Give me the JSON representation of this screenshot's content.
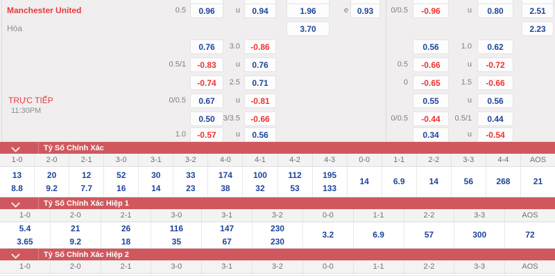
{
  "colors": {
    "accent_red": "#e8393d",
    "odds_blue": "#1d439b",
    "odds_red": "#f03030",
    "banner_red": "#cf585e"
  },
  "odds": {
    "home_team": "Manchester United",
    "draw_label": "Hòa",
    "live_label": "TRỰC TIẾP",
    "time": "11:30PM",
    "rows": [
      {
        "cells": [
          {
            "p": "l",
            "c": 0,
            "t": "0.5",
            "s": "label"
          },
          {
            "p": "l",
            "c": 1,
            "t": "0.96",
            "s": "blue"
          },
          {
            "p": "l",
            "c": 2,
            "t": "u",
            "s": "label"
          },
          {
            "p": "l",
            "c": 3,
            "t": "0.94",
            "s": "blue"
          },
          {
            "p": "l",
            "c": 4,
            "t": "1.96",
            "s": "blue"
          },
          {
            "p": "l",
            "c": 5,
            "t": "e",
            "s": "label"
          },
          {
            "p": "l",
            "c": 6,
            "t": "0.93",
            "s": "blue"
          },
          {
            "p": "r",
            "c": 0,
            "t": "0/0.5",
            "s": "label"
          },
          {
            "p": "r",
            "c": 1,
            "t": "-0.96",
            "s": "red"
          },
          {
            "p": "r",
            "c": 2,
            "t": "u",
            "s": "label"
          },
          {
            "p": "r",
            "c": 3,
            "t": "0.80",
            "s": "blue"
          },
          {
            "p": "r",
            "c": 4,
            "t": "2.51",
            "s": "blue"
          }
        ]
      },
      {
        "cells": [
          {
            "p": "l",
            "c": 4,
            "t": "3.70",
            "s": "blue"
          },
          {
            "p": "r",
            "c": 4,
            "t": "2.23",
            "s": "blue"
          }
        ]
      },
      {
        "cells": [
          {
            "p": "l",
            "c": 1,
            "t": "0.76",
            "s": "blue"
          },
          {
            "p": "l",
            "c": 2,
            "t": "3.0",
            "s": "label"
          },
          {
            "p": "l",
            "c": 3,
            "t": "-0.86",
            "s": "red"
          },
          {
            "p": "r",
            "c": 1,
            "t": "0.56",
            "s": "blue"
          },
          {
            "p": "r",
            "c": 2,
            "t": "1.0",
            "s": "label"
          },
          {
            "p": "r",
            "c": 3,
            "t": "0.62",
            "s": "blue"
          }
        ]
      },
      {
        "cells": [
          {
            "p": "l",
            "c": 0,
            "t": "0.5/1",
            "s": "label"
          },
          {
            "p": "l",
            "c": 1,
            "t": "-0.83",
            "s": "red"
          },
          {
            "p": "l",
            "c": 2,
            "t": "u",
            "s": "label"
          },
          {
            "p": "l",
            "c": 3,
            "t": "0.76",
            "s": "blue"
          },
          {
            "p": "r",
            "c": 0,
            "t": "0.5",
            "s": "label"
          },
          {
            "p": "r",
            "c": 1,
            "t": "-0.66",
            "s": "red"
          },
          {
            "p": "r",
            "c": 2,
            "t": "u",
            "s": "label"
          },
          {
            "p": "r",
            "c": 3,
            "t": "-0.72",
            "s": "red"
          }
        ]
      },
      {
        "cells": [
          {
            "p": "l",
            "c": 1,
            "t": "-0.74",
            "s": "red"
          },
          {
            "p": "l",
            "c": 2,
            "t": "2.5",
            "s": "label"
          },
          {
            "p": "l",
            "c": 3,
            "t": "0.71",
            "s": "blue"
          },
          {
            "p": "r",
            "c": 0,
            "t": "0",
            "s": "label"
          },
          {
            "p": "r",
            "c": 1,
            "t": "-0.65",
            "s": "red"
          },
          {
            "p": "r",
            "c": 2,
            "t": "1.5",
            "s": "label"
          },
          {
            "p": "r",
            "c": 3,
            "t": "-0.66",
            "s": "red"
          }
        ]
      },
      {
        "cells": [
          {
            "p": "l",
            "c": 0,
            "t": "0/0.5",
            "s": "label"
          },
          {
            "p": "l",
            "c": 1,
            "t": "0.67",
            "s": "blue"
          },
          {
            "p": "l",
            "c": 2,
            "t": "u",
            "s": "label"
          },
          {
            "p": "l",
            "c": 3,
            "t": "-0.81",
            "s": "red"
          },
          {
            "p": "r",
            "c": 1,
            "t": "0.55",
            "s": "blue"
          },
          {
            "p": "r",
            "c": 2,
            "t": "u",
            "s": "label"
          },
          {
            "p": "r",
            "c": 3,
            "t": "0.56",
            "s": "blue"
          }
        ]
      },
      {
        "cells": [
          {
            "p": "l",
            "c": 1,
            "t": "0.50",
            "s": "blue"
          },
          {
            "p": "l",
            "c": 2,
            "t": "3/3.5",
            "s": "label"
          },
          {
            "p": "l",
            "c": 3,
            "t": "-0.66",
            "s": "red"
          },
          {
            "p": "r",
            "c": 0,
            "t": "0/0.5",
            "s": "label"
          },
          {
            "p": "r",
            "c": 1,
            "t": "-0.44",
            "s": "red"
          },
          {
            "p": "r",
            "c": 2,
            "t": "0.5/1",
            "s": "label"
          },
          {
            "p": "r",
            "c": 3,
            "t": "0.44",
            "s": "blue"
          }
        ]
      },
      {
        "cells": [
          {
            "p": "l",
            "c": 0,
            "t": "1.0",
            "s": "label"
          },
          {
            "p": "l",
            "c": 1,
            "t": "-0.57",
            "s": "red"
          },
          {
            "p": "l",
            "c": 2,
            "t": "u",
            "s": "label"
          },
          {
            "p": "l",
            "c": 3,
            "t": "0.56",
            "s": "blue"
          },
          {
            "p": "r",
            "c": 1,
            "t": "0.34",
            "s": "blue"
          },
          {
            "p": "r",
            "c": 2,
            "t": "u",
            "s": "label"
          },
          {
            "p": "r",
            "c": 3,
            "t": "-0.54",
            "s": "red"
          }
        ]
      }
    ]
  },
  "score_sections": [
    {
      "title": "Tỷ Số Chính Xác",
      "cols": [
        {
          "h": "1-0",
          "v": [
            "13",
            "8.8"
          ]
        },
        {
          "h": "2-0",
          "v": [
            "20",
            "9.2"
          ]
        },
        {
          "h": "2-1",
          "v": [
            "12",
            "7.7"
          ]
        },
        {
          "h": "3-0",
          "v": [
            "52",
            "16"
          ]
        },
        {
          "h": "3-1",
          "v": [
            "30",
            "14"
          ]
        },
        {
          "h": "3-2",
          "v": [
            "33",
            "23"
          ]
        },
        {
          "h": "4-0",
          "v": [
            "174",
            "38"
          ]
        },
        {
          "h": "4-1",
          "v": [
            "100",
            "32"
          ]
        },
        {
          "h": "4-2",
          "v": [
            "112",
            "53"
          ]
        },
        {
          "h": "4-3",
          "v": [
            "195",
            "133"
          ]
        },
        {
          "h": "0-0",
          "v": [
            "14"
          ]
        },
        {
          "h": "1-1",
          "v": [
            "6.9"
          ]
        },
        {
          "h": "2-2",
          "v": [
            "14"
          ]
        },
        {
          "h": "3-3",
          "v": [
            "56"
          ]
        },
        {
          "h": "4-4",
          "v": [
            "268"
          ]
        },
        {
          "h": "AOS",
          "v": [
            "21"
          ]
        }
      ]
    },
    {
      "title": "Tỷ Số Chính Xác Hiệp 1",
      "cols": [
        {
          "h": "1-0",
          "v": [
            "5.4",
            "3.65"
          ]
        },
        {
          "h": "2-0",
          "v": [
            "21",
            "9.2"
          ]
        },
        {
          "h": "2-1",
          "v": [
            "26",
            "18"
          ]
        },
        {
          "h": "3-0",
          "v": [
            "116",
            "35"
          ]
        },
        {
          "h": "3-1",
          "v": [
            "147",
            "67"
          ]
        },
        {
          "h": "3-2",
          "v": [
            "230",
            "230"
          ]
        },
        {
          "h": "0-0",
          "v": [
            "3.2"
          ]
        },
        {
          "h": "1-1",
          "v": [
            "6.9"
          ]
        },
        {
          "h": "2-2",
          "v": [
            "57"
          ]
        },
        {
          "h": "3-3",
          "v": [
            "300"
          ]
        },
        {
          "h": "AOS",
          "v": [
            "72"
          ]
        }
      ]
    },
    {
      "title": "Tỷ Số Chính Xác Hiệp 2",
      "cols": [
        {
          "h": "1-0",
          "v": []
        },
        {
          "h": "2-0",
          "v": []
        },
        {
          "h": "2-1",
          "v": []
        },
        {
          "h": "3-0",
          "v": []
        },
        {
          "h": "3-1",
          "v": []
        },
        {
          "h": "3-2",
          "v": []
        },
        {
          "h": "0-0",
          "v": []
        },
        {
          "h": "1-1",
          "v": []
        },
        {
          "h": "2-2",
          "v": []
        },
        {
          "h": "3-3",
          "v": []
        },
        {
          "h": "AOS",
          "v": []
        }
      ]
    }
  ]
}
